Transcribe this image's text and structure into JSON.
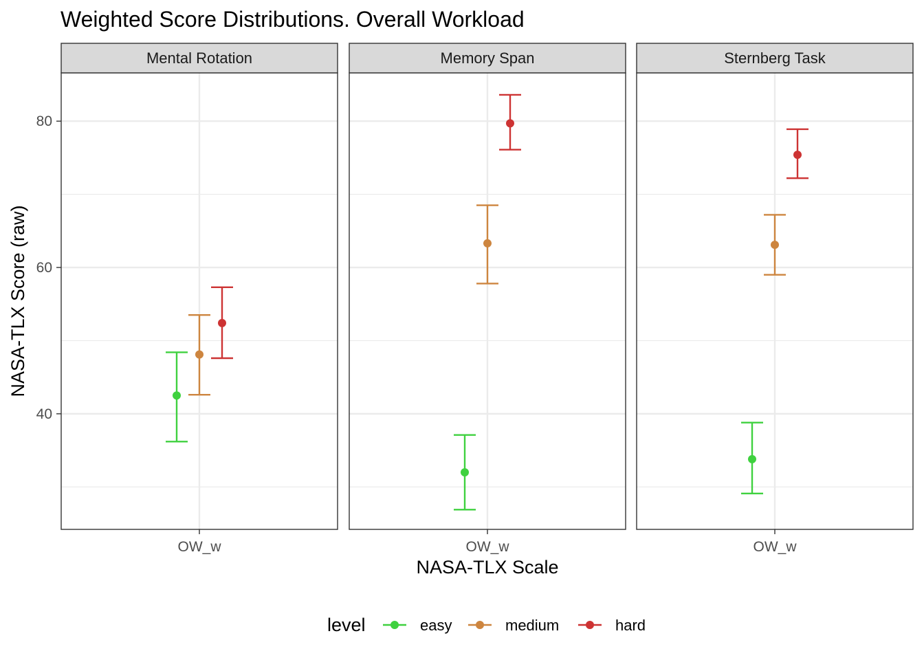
{
  "chart_data": {
    "type": "errorbar",
    "title": "Weighted Score Distributions. Overall Workload",
    "xlabel": "NASA-TLX Scale",
    "ylabel": "NASA-TLX Score (raw)",
    "ylim": [
      24.2,
      86.6
    ],
    "y_ticks": [
      40,
      60,
      80
    ],
    "y_minor_ticks": [
      30,
      50,
      70
    ],
    "grid": true,
    "legend": {
      "title": "level",
      "position": "bottom"
    },
    "levels": [
      "easy",
      "medium",
      "hard"
    ],
    "colors": {
      "easy": "#3fd13f",
      "medium": "#cd853f",
      "hard": "#cd3333"
    },
    "panels": [
      {
        "strip": "Mental Rotation",
        "x_tick": "OW_w",
        "points": [
          {
            "level": "easy",
            "mean": 42.5,
            "lower": 36.2,
            "upper": 48.4
          },
          {
            "level": "medium",
            "mean": 48.1,
            "lower": 42.6,
            "upper": 53.5
          },
          {
            "level": "hard",
            "mean": 52.4,
            "lower": 47.6,
            "upper": 57.3
          }
        ]
      },
      {
        "strip": "Memory Span",
        "x_tick": "OW_w",
        "points": [
          {
            "level": "easy",
            "mean": 32.0,
            "lower": 26.9,
            "upper": 37.1
          },
          {
            "level": "medium",
            "mean": 63.3,
            "lower": 57.8,
            "upper": 68.5
          },
          {
            "level": "hard",
            "mean": 79.7,
            "lower": 76.1,
            "upper": 83.6
          }
        ]
      },
      {
        "strip": "Sternberg Task",
        "x_tick": "OW_w",
        "points": [
          {
            "level": "easy",
            "mean": 33.8,
            "lower": 29.1,
            "upper": 38.8
          },
          {
            "level": "medium",
            "mean": 63.1,
            "lower": 59.0,
            "upper": 67.2
          },
          {
            "level": "hard",
            "mean": 75.4,
            "lower": 72.2,
            "upper": 78.9
          }
        ]
      }
    ]
  }
}
